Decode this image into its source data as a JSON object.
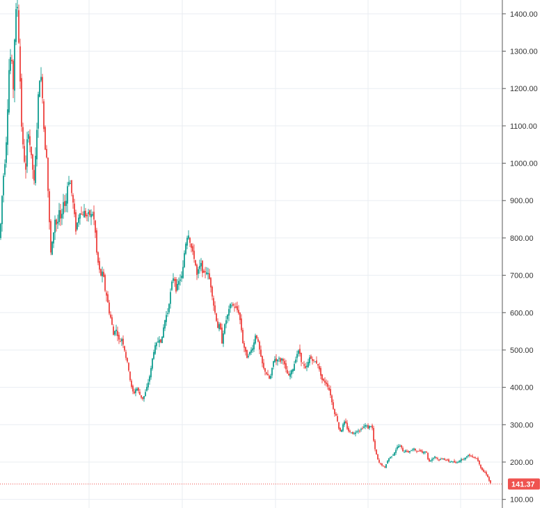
{
  "chart_data": {
    "type": "candlestick",
    "title": "",
    "xlabel": "",
    "ylabel": "",
    "ylim": [
      77,
      1437
    ],
    "y_ticks": [
      "100.00",
      "200.00",
      "300.00",
      "400.00",
      "500.00",
      "600.00",
      "700.00",
      "800.00",
      "900.00",
      "1000.00",
      "1100.00",
      "1200.00",
      "1300.00",
      "1400.00"
    ],
    "y_axis_position": "right",
    "grid": true,
    "last_price": "141.37",
    "colors": {
      "up": "#26a69a",
      "down": "#ef5350",
      "grid": "#e9edf2",
      "axis": "#555555",
      "price_label_bg": "#ef5350",
      "price_label_text": "#ffffff"
    },
    "close_path": [
      [
        0,
        800
      ],
      [
        4,
        950
      ],
      [
        8,
        1020
      ],
      [
        10,
        1100
      ],
      [
        13,
        1250
      ],
      [
        16,
        1300
      ],
      [
        19,
        1200
      ],
      [
        22,
        1400
      ],
      [
        25,
        1420
      ],
      [
        28,
        1280
      ],
      [
        31,
        1100
      ],
      [
        34,
        1020
      ],
      [
        37,
        980
      ],
      [
        40,
        1100
      ],
      [
        43,
        1050
      ],
      [
        46,
        1000
      ],
      [
        49,
        950
      ],
      [
        52,
        1050
      ],
      [
        55,
        1180
      ],
      [
        58,
        1250
      ],
      [
        61,
        1180
      ],
      [
        64,
        1050
      ],
      [
        67,
        1020
      ],
      [
        70,
        880
      ],
      [
        73,
        760
      ],
      [
        76,
        800
      ],
      [
        79,
        850
      ],
      [
        82,
        830
      ],
      [
        85,
        870
      ],
      [
        88,
        840
      ],
      [
        91,
        900
      ],
      [
        94,
        880
      ],
      [
        97,
        940
      ],
      [
        100,
        960
      ],
      [
        103,
        920
      ],
      [
        106,
        880
      ],
      [
        109,
        820
      ],
      [
        112,
        850
      ],
      [
        115,
        870
      ],
      [
        118,
        860
      ],
      [
        121,
        870
      ],
      [
        124,
        855
      ],
      [
        127,
        865
      ],
      [
        130,
        860
      ],
      [
        133,
        865
      ],
      [
        136,
        840
      ],
      [
        139,
        760
      ],
      [
        142,
        720
      ],
      [
        145,
        700
      ],
      [
        148,
        710
      ],
      [
        151,
        660
      ],
      [
        154,
        640
      ],
      [
        157,
        600
      ],
      [
        160,
        580
      ],
      [
        163,
        540
      ],
      [
        166,
        560
      ],
      [
        169,
        540
      ],
      [
        172,
        520
      ],
      [
        175,
        530
      ],
      [
        178,
        510
      ],
      [
        181,
        480
      ],
      [
        184,
        460
      ],
      [
        187,
        420
      ],
      [
        190,
        390
      ],
      [
        193,
        385
      ],
      [
        196,
        400
      ],
      [
        199,
        390
      ],
      [
        202,
        375
      ],
      [
        205,
        370
      ],
      [
        208,
        380
      ],
      [
        211,
        400
      ],
      [
        214,
        420
      ],
      [
        217,
        450
      ],
      [
        220,
        490
      ],
      [
        223,
        510
      ],
      [
        226,
        520
      ],
      [
        229,
        530
      ],
      [
        232,
        520
      ],
      [
        235,
        560
      ],
      [
        238,
        590
      ],
      [
        241,
        600
      ],
      [
        244,
        640
      ],
      [
        247,
        680
      ],
      [
        250,
        700
      ],
      [
        253,
        660
      ],
      [
        256,
        680
      ],
      [
        259,
        690
      ],
      [
        262,
        700
      ],
      [
        265,
        760
      ],
      [
        268,
        800
      ],
      [
        271,
        810
      ],
      [
        274,
        780
      ],
      [
        277,
        760
      ],
      [
        280,
        740
      ],
      [
        283,
        700
      ],
      [
        286,
        720
      ],
      [
        289,
        730
      ],
      [
        292,
        700
      ],
      [
        295,
        710
      ],
      [
        298,
        710
      ],
      [
        301,
        690
      ],
      [
        304,
        660
      ],
      [
        307,
        620
      ],
      [
        310,
        590
      ],
      [
        313,
        560
      ],
      [
        316,
        570
      ],
      [
        319,
        520
      ],
      [
        322,
        560
      ],
      [
        325,
        580
      ],
      [
        328,
        600
      ],
      [
        331,
        620
      ],
      [
        334,
        620
      ],
      [
        337,
        615
      ],
      [
        340,
        610
      ],
      [
        343,
        600
      ],
      [
        346,
        570
      ],
      [
        349,
        520
      ],
      [
        352,
        500
      ],
      [
        355,
        480
      ],
      [
        358,
        490
      ],
      [
        361,
        500
      ],
      [
        364,
        510
      ],
      [
        367,
        540
      ],
      [
        370,
        530
      ],
      [
        373,
        500
      ],
      [
        376,
        470
      ],
      [
        379,
        450
      ],
      [
        382,
        440
      ],
      [
        385,
        430
      ],
      [
        388,
        420
      ],
      [
        391,
        450
      ],
      [
        394,
        480
      ],
      [
        397,
        470
      ],
      [
        400,
        480
      ],
      [
        403,
        470
      ],
      [
        406,
        480
      ],
      [
        409,
        460
      ],
      [
        412,
        440
      ],
      [
        415,
        430
      ],
      [
        418,
        440
      ],
      [
        421,
        450
      ],
      [
        424,
        470
      ],
      [
        427,
        490
      ],
      [
        430,
        500
      ],
      [
        433,
        470
      ],
      [
        436,
        460
      ],
      [
        439,
        450
      ],
      [
        442,
        460
      ],
      [
        445,
        480
      ],
      [
        448,
        475
      ],
      [
        451,
        470
      ],
      [
        454,
        468
      ],
      [
        457,
        460
      ],
      [
        460,
        440
      ],
      [
        463,
        420
      ],
      [
        466,
        415
      ],
      [
        469,
        410
      ],
      [
        472,
        400
      ],
      [
        475,
        380
      ],
      [
        478,
        350
      ],
      [
        481,
        330
      ],
      [
        484,
        320
      ],
      [
        487,
        290
      ],
      [
        490,
        280
      ],
      [
        493,
        300
      ],
      [
        496,
        310
      ],
      [
        499,
        290
      ],
      [
        502,
        280
      ],
      [
        505,
        280
      ],
      [
        508,
        275
      ],
      [
        511,
        280
      ],
      [
        514,
        285
      ],
      [
        517,
        285
      ],
      [
        520,
        290
      ],
      [
        523,
        295
      ],
      [
        526,
        300
      ],
      [
        529,
        290
      ],
      [
        532,
        300
      ],
      [
        535,
        290
      ],
      [
        538,
        240
      ],
      [
        541,
        220
      ],
      [
        544,
        200
      ],
      [
        547,
        195
      ],
      [
        550,
        190
      ],
      [
        553,
        185
      ],
      [
        556,
        200
      ],
      [
        559,
        210
      ],
      [
        562,
        215
      ],
      [
        565,
        220
      ],
      [
        568,
        230
      ],
      [
        571,
        240
      ],
      [
        574,
        245
      ],
      [
        577,
        238
      ],
      [
        580,
        225
      ],
      [
        583,
        232
      ],
      [
        586,
        225
      ],
      [
        589,
        230
      ],
      [
        592,
        232
      ],
      [
        595,
        235
      ],
      [
        598,
        230
      ],
      [
        601,
        228
      ],
      [
        604,
        232
      ],
      [
        607,
        225
      ],
      [
        610,
        230
      ],
      [
        613,
        225
      ],
      [
        616,
        200
      ],
      [
        619,
        205
      ],
      [
        622,
        210
      ],
      [
        625,
        215
      ],
      [
        628,
        210
      ],
      [
        631,
        205
      ],
      [
        634,
        208
      ],
      [
        637,
        210
      ],
      [
        640,
        205
      ],
      [
        643,
        205
      ],
      [
        646,
        200
      ],
      [
        649,
        202
      ],
      [
        652,
        200
      ],
      [
        655,
        197
      ],
      [
        658,
        200
      ],
      [
        661,
        205
      ],
      [
        664,
        208
      ],
      [
        667,
        210
      ],
      [
        670,
        212
      ],
      [
        673,
        220
      ],
      [
        676,
        215
      ],
      [
        679,
        215
      ],
      [
        682,
        212
      ],
      [
        685,
        210
      ],
      [
        688,
        200
      ],
      [
        691,
        185
      ],
      [
        694,
        175
      ],
      [
        697,
        172
      ],
      [
        700,
        165
      ],
      [
        703,
        150
      ],
      [
        706,
        141
      ]
    ]
  }
}
